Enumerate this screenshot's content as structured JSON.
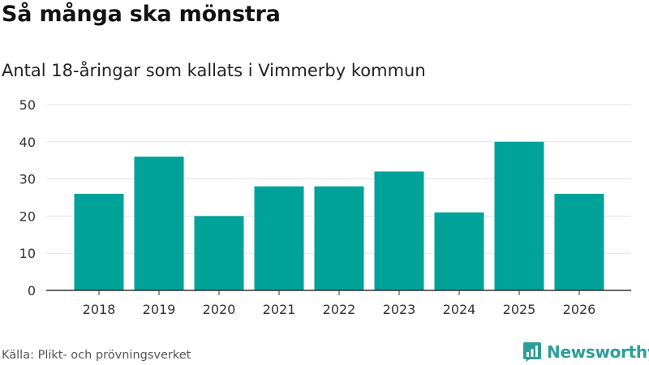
{
  "title": "Så många ska mönstra",
  "subtitle": "Antal 18-åringar som kallats i Vimmerby kommun",
  "source": "Källa: Plikt- och prövningsverket",
  "brand": {
    "name": "Newsworthy",
    "color": "#2c9f97",
    "icon": "newsworthy-logo-icon"
  },
  "colors": {
    "bar": "#00a29a",
    "grid": "#e3e3e3",
    "axis": "#333333",
    "tick_text": "#333333"
  },
  "chart_data": {
    "type": "bar",
    "categories": [
      "2018",
      "2019",
      "2020",
      "2021",
      "2022",
      "2023",
      "2024",
      "2025",
      "2026"
    ],
    "values": [
      26,
      36,
      20,
      28,
      28,
      32,
      21,
      40,
      26
    ],
    "title": "Så många ska mönstra",
    "subtitle": "Antal 18-åringar som kallats i Vimmerby kommun",
    "xlabel": "",
    "ylabel": "",
    "ylim": [
      0,
      50
    ],
    "yticks": [
      0,
      10,
      20,
      30,
      40,
      50
    ],
    "grid": true,
    "legend": "none"
  }
}
